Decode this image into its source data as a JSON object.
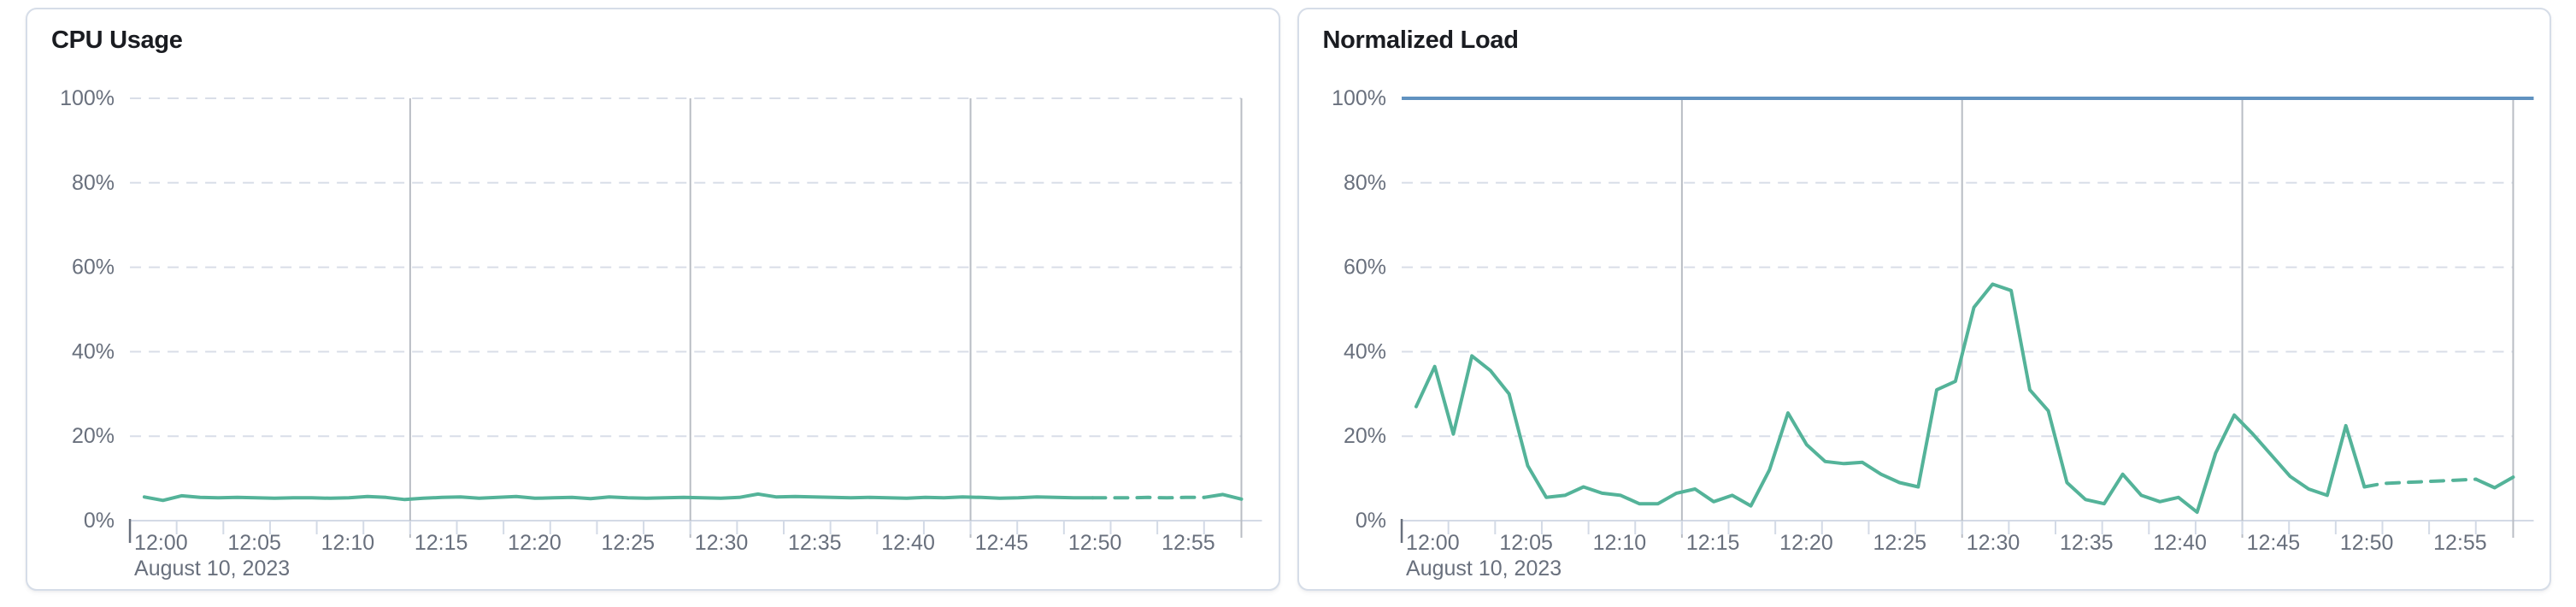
{
  "page": {
    "background_color": "#ffffff",
    "card_border_color": "#d6dde8"
  },
  "panels": [
    {
      "title": "CPU Usage"
    },
    {
      "title": "Normalized Load"
    }
  ],
  "colors": {
    "series_green": "#54b399",
    "threshold_blue": "#6092c0",
    "grid_dashed": "#d9dee8",
    "grid_solid_vertical": "#b9bdc4",
    "axis_baseline": "#d3dae6",
    "tick_minor": "#d3dae6",
    "tick_origin": "#69707d",
    "axis_text": "#69707d",
    "title_text": "#1a1c21"
  },
  "chart_data": [
    {
      "type": "line",
      "title": "CPU Usage",
      "series": [
        {
          "name": "CPU Usage",
          "color": "#54b399",
          "values": [
            5.6,
            4.8,
            5.9,
            5.5,
            5.4,
            5.5,
            5.4,
            5.3,
            5.4,
            5.4,
            5.3,
            5.4,
            5.7,
            5.5,
            5.0,
            5.3,
            5.5,
            5.6,
            5.3,
            5.5,
            5.7,
            5.3,
            5.4,
            5.5,
            5.2,
            5.6,
            5.4,
            5.3,
            5.4,
            5.5,
            5.4,
            5.3,
            5.5,
            6.3,
            5.6,
            5.7,
            5.6,
            5.5,
            5.4,
            5.5,
            5.4,
            5.3,
            5.5,
            5.4,
            5.6,
            5.5,
            5.3,
            5.4,
            5.6,
            5.5,
            5.4,
            5.4,
            5.4,
            5.4,
            5.5,
            5.4,
            5.5,
            5.5,
            6.2,
            5.1
          ]
        }
      ],
      "x_start_label": "12:00",
      "x_interval_minutes": 1,
      "x_domain_minutes": 59.5,
      "x_tick_labels": [
        "12:00",
        "12:05",
        "12:10",
        "12:15",
        "12:20",
        "12:25",
        "12:30",
        "12:35",
        "12:40",
        "12:45",
        "12:50",
        "12:55"
      ],
      "x_tick_interval_minutes": 5,
      "minor_tick_interval_minutes": 2.5,
      "vertical_gridlines_minutes": [
        15,
        30,
        45
      ],
      "date_label": "August 10, 2023",
      "y_tick_labels": [
        "0%",
        "20%",
        "40%",
        "60%",
        "80%",
        "100%"
      ],
      "ylim": [
        0,
        100
      ],
      "grid": "dashed-horizontal",
      "legend": "none",
      "dashed_from_index": 51,
      "solid_tail_from_index": 57,
      "threshold_line": null
    },
    {
      "type": "line",
      "title": "Normalized Load",
      "series": [
        {
          "name": "Normalized Load",
          "color": "#54b399",
          "values": [
            27,
            36.5,
            20.5,
            39,
            35.5,
            30,
            13,
            5.5,
            6,
            8,
            6.5,
            6,
            4,
            4,
            6.5,
            7.5,
            4.5,
            6,
            3.5,
            12,
            25.5,
            18,
            14,
            13.5,
            13.8,
            11,
            9,
            8,
            31,
            33,
            50.5,
            56,
            54.5,
            31,
            26,
            9,
            5,
            4,
            11,
            6,
            4.5,
            5.5,
            2,
            16,
            25,
            20.5,
            15.5,
            10.5,
            7.5,
            6,
            22.5,
            8,
            8.8,
            9,
            9.2,
            9.4,
            9.6,
            9.8,
            7.8,
            10.3
          ]
        }
      ],
      "x_start_label": "12:00",
      "x_interval_minutes": 1,
      "x_domain_minutes": 59.5,
      "x_tick_labels": [
        "12:00",
        "12:05",
        "12:10",
        "12:15",
        "12:20",
        "12:25",
        "12:30",
        "12:35",
        "12:40",
        "12:45",
        "12:50",
        "12:55"
      ],
      "x_tick_interval_minutes": 5,
      "minor_tick_interval_minutes": 2.5,
      "vertical_gridlines_minutes": [
        15,
        30,
        45
      ],
      "date_label": "August 10, 2023",
      "y_tick_labels": [
        "0%",
        "20%",
        "40%",
        "60%",
        "80%",
        "100%"
      ],
      "ylim": [
        0,
        100
      ],
      "grid": "dashed-horizontal",
      "legend": "none",
      "dashed_from_index": 51,
      "solid_tail_from_index": 57,
      "threshold_line": {
        "value": 100,
        "color": "#6092c0"
      }
    }
  ]
}
